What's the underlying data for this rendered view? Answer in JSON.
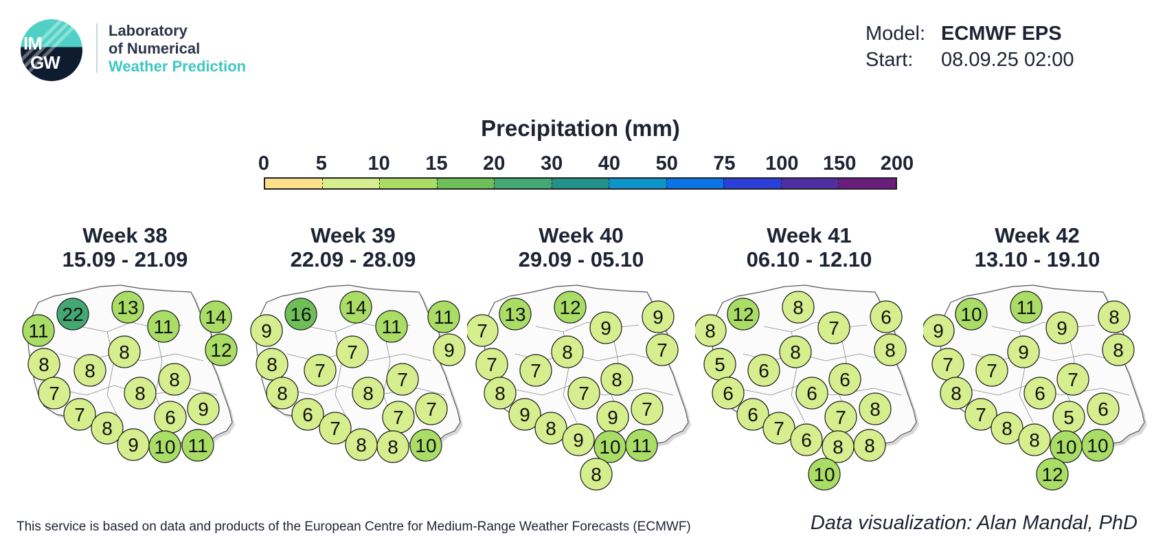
{
  "logo": {
    "mark_line1": "IM",
    "mark_line2": "GW",
    "lab_line1": "Laboratory",
    "lab_line2": "of Numerical",
    "lab_line3": "Weather Prediction"
  },
  "meta": {
    "model_label": "Model:",
    "model_value": "ECMWF EPS",
    "start_label": "Start:",
    "start_value": "08.09.25 02:00"
  },
  "legend": {
    "title": "Precipitation (mm)",
    "ticks": [
      "0",
      "5",
      "10",
      "15",
      "20",
      "30",
      "40",
      "50",
      "75",
      "100",
      "150",
      "200"
    ],
    "colors": [
      "#fde08a",
      "#d6ee8e",
      "#a9dd66",
      "#6fbf58",
      "#43a872",
      "#23938a",
      "#0d95c9",
      "#0a74e6",
      "#2a3fd8",
      "#4e2ea0",
      "#6a1d7d",
      "#d31088"
    ]
  },
  "weeks": [
    {
      "week": "Week 38",
      "dates": "15.09 - 21.09",
      "values": [
        22,
        13,
        11,
        14,
        11,
        12,
        8,
        8,
        8,
        8,
        8,
        9,
        7,
        7,
        6,
        8,
        9,
        10,
        11
      ]
    },
    {
      "week": "Week 39",
      "dates": "22.09 - 28.09",
      "values": [
        16,
        14,
        11,
        11,
        9,
        9,
        7,
        8,
        7,
        7,
        8,
        7,
        8,
        6,
        7,
        7,
        8,
        8,
        10
      ]
    },
    {
      "week": "Week 40",
      "dates": "29.09 - 05.10",
      "values": [
        13,
        12,
        9,
        9,
        7,
        7,
        8,
        7,
        7,
        8,
        7,
        7,
        8,
        9,
        9,
        8,
        9,
        10,
        11,
        8
      ]
    },
    {
      "week": "Week 41",
      "dates": "06.10 - 12.10",
      "values": [
        12,
        8,
        7,
        6,
        8,
        8,
        8,
        5,
        6,
        6,
        6,
        8,
        6,
        6,
        7,
        7,
        6,
        8,
        8,
        10
      ]
    },
    {
      "week": "Week 42",
      "dates": "13.10 - 19.10",
      "values": [
        10,
        11,
        9,
        8,
        9,
        8,
        9,
        7,
        7,
        7,
        6,
        6,
        8,
        7,
        5,
        8,
        8,
        10,
        10,
        12
      ]
    }
  ],
  "footer": {
    "left": "This service is based on data and products of the European Centre for Medium-Range Weather Forecasts (ECMWF)",
    "right": "Data visualization: Alan Mandal, PhD"
  }
}
